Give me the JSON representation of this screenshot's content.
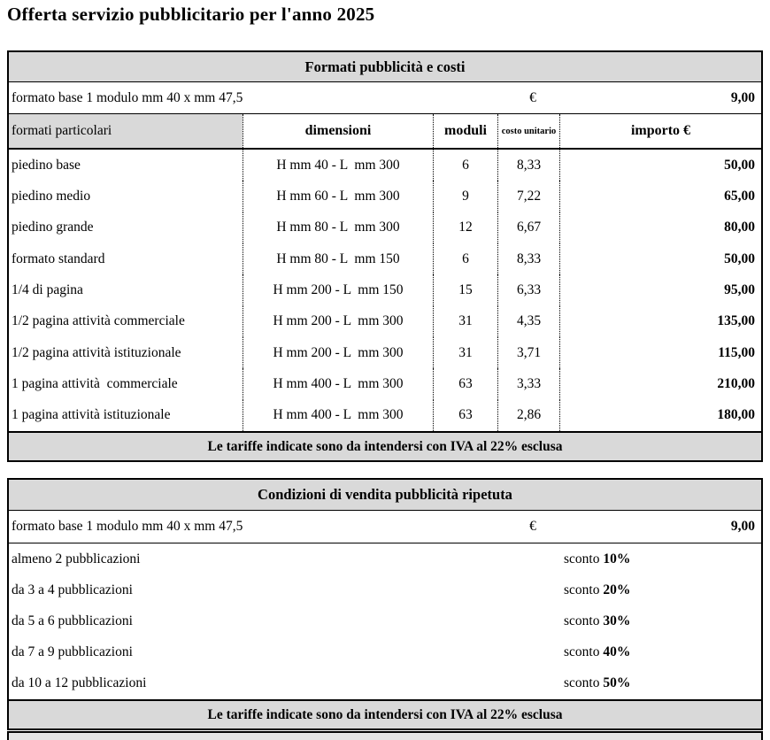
{
  "page": {
    "title": "Offerta servizio pubblicitario per l'anno 2025"
  },
  "colors": {
    "header_bg": "#d9d9d9",
    "border": "#000000",
    "page_bg": "#ffffff"
  },
  "formats_table": {
    "title": "Formati pubblicità e costi",
    "base_row": {
      "label": "formato base 1 modulo mm 40 x mm 47,5",
      "currency_symbol": "€",
      "price": "9,00"
    },
    "columns": {
      "formato": "formati particolari",
      "dimensioni": "dimensioni",
      "moduli": "moduli",
      "costo_unitario": "costo unitario",
      "importo": "importo €"
    },
    "rows": [
      {
        "formato": "piedino base",
        "dimensioni": "H mm 40 - L  mm 300",
        "moduli": "6",
        "costo": "8,33",
        "importo": "50,00"
      },
      {
        "formato": "piedino medio",
        "dimensioni": "H mm 60 - L  mm 300",
        "moduli": "9",
        "costo": "7,22",
        "importo": "65,00"
      },
      {
        "formato": "piedino grande",
        "dimensioni": "H mm 80 - L  mm 300",
        "moduli": "12",
        "costo": "6,67",
        "importo": "80,00"
      },
      {
        "formato": "formato standard",
        "dimensioni": "H mm 80 - L  mm 150",
        "moduli": "6",
        "costo": "8,33",
        "importo": "50,00"
      },
      {
        "formato": "1/4 di pagina",
        "dimensioni": "H mm 200 - L  mm 150",
        "moduli": "15",
        "costo": "6,33",
        "importo": "95,00"
      },
      {
        "formato": "1/2 pagina attività commerciale",
        "dimensioni": "H mm 200 - L  mm 300",
        "moduli": "31",
        "costo": "4,35",
        "importo": "135,00"
      },
      {
        "formato": "1/2 pagina attività istituzionale",
        "dimensioni": "H mm 200 - L  mm 300",
        "moduli": "31",
        "costo": "3,71",
        "importo": "115,00"
      },
      {
        "formato": "1 pagina attività  commerciale",
        "dimensioni": "H mm 400 - L  mm 300",
        "moduli": "63",
        "costo": "3,33",
        "importo": "210,00"
      },
      {
        "formato": "1 pagina attività istituzionale",
        "dimensioni": "H mm 400 - L  mm 300",
        "moduli": "63",
        "costo": "2,86",
        "importo": "180,00"
      }
    ],
    "footer_note": "Le tariffe indicate sono da intendersi con IVA al 22% esclusa"
  },
  "conditions_table": {
    "title": "Condizioni di vendita pubblicità ripetuta",
    "base_row": {
      "label": "formato base 1 modulo mm 40 x mm 47,5",
      "currency_symbol": "€",
      "price": "9,00"
    },
    "rows": [
      {
        "label": "almeno 2 pubblicazioni",
        "sconto_label": "sconto",
        "sconto_value": "10%"
      },
      {
        "label": "da 3 a 4 pubblicazioni",
        "sconto_label": "sconto",
        "sconto_value": "20%"
      },
      {
        "label": "da 5 a 6 pubblicazioni",
        "sconto_label": "sconto",
        "sconto_value": "30%"
      },
      {
        "label": "da 7 a 9 pubblicazioni",
        "sconto_label": "sconto",
        "sconto_value": "40%"
      },
      {
        "label": "da 10 a 12 pubblicazioni",
        "sconto_label": "sconto",
        "sconto_value": "50%"
      }
    ],
    "footer_note": "Le tariffe indicate sono da intendersi con IVA al 22% esclusa"
  }
}
